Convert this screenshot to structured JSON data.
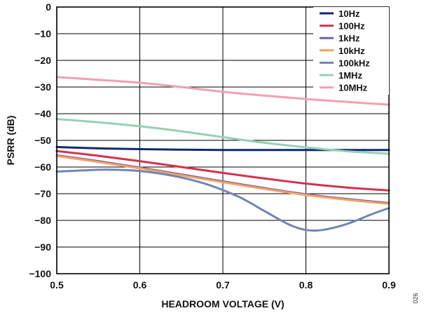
{
  "chart_data": {
    "type": "line",
    "title": "",
    "xlabel": "HEADROOM VOLTAGE (V)",
    "ylabel": "PSRR (dB)",
    "xlim": [
      0.5,
      0.9
    ],
    "ylim": [
      -100,
      0
    ],
    "xticks": [
      0.5,
      0.6,
      0.7,
      0.8,
      0.9
    ],
    "yticks": [
      0,
      -10,
      -20,
      -30,
      -40,
      -50,
      -60,
      -70,
      -80,
      -90,
      -100
    ],
    "xtick_labels": [
      "0.5",
      "0.6",
      "0.7",
      "0.8",
      "0.9"
    ],
    "ytick_labels": [
      "0",
      "−10",
      "−20",
      "−30",
      "−40",
      "−50",
      "−60",
      "−70",
      "−80",
      "−90",
      "−100"
    ],
    "grid": true,
    "legend_position": "top-right",
    "figure_id": "026",
    "series": [
      {
        "name": "10Hz",
        "color": "#0d2a6e",
        "x": [
          0.5,
          0.55,
          0.6,
          0.65,
          0.7,
          0.75,
          0.8,
          0.85,
          0.9
        ],
        "y": [
          -52.5,
          -53,
          -53.3,
          -53.5,
          -53.6,
          -53.6,
          -53.6,
          -53.6,
          -53.6
        ]
      },
      {
        "name": "100Hz",
        "color": "#d1344f",
        "x": [
          0.5,
          0.55,
          0.6,
          0.65,
          0.7,
          0.75,
          0.8,
          0.85,
          0.9
        ],
        "y": [
          -54,
          -55.8,
          -57.8,
          -60,
          -62.2,
          -64.3,
          -66.2,
          -67.7,
          -68.8
        ]
      },
      {
        "name": "1kHz",
        "color": "#7b5fa8",
        "x": [
          0.5,
          0.55,
          0.6,
          0.65,
          0.7,
          0.75,
          0.8,
          0.85,
          0.9
        ],
        "y": [
          -55.6,
          -57.8,
          -60.2,
          -62.8,
          -65.4,
          -67.9,
          -70.2,
          -72,
          -73.5
        ]
      },
      {
        "name": "10kHz",
        "color": "#f4a163",
        "x": [
          0.5,
          0.55,
          0.6,
          0.65,
          0.7,
          0.75,
          0.8,
          0.85,
          0.9
        ],
        "y": [
          -55.9,
          -58.1,
          -60.5,
          -63.1,
          -65.7,
          -68.2,
          -70.5,
          -72.3,
          -73.8
        ]
      },
      {
        "name": "100kHz",
        "color": "#6f86b6",
        "x": [
          0.5,
          0.53,
          0.56,
          0.6,
          0.64,
          0.68,
          0.72,
          0.75,
          0.78,
          0.8,
          0.82,
          0.85,
          0.88,
          0.9
        ],
        "y": [
          -61.7,
          -61.3,
          -61,
          -61.5,
          -63.3,
          -66.4,
          -71.3,
          -76.5,
          -81.6,
          -83.6,
          -83.6,
          -81.3,
          -77.6,
          -75.4
        ]
      },
      {
        "name": "1MHz",
        "color": "#96d0b6",
        "x": [
          0.5,
          0.55,
          0.6,
          0.65,
          0.7,
          0.75,
          0.8,
          0.85,
          0.9
        ],
        "y": [
          -42,
          -43.2,
          -44.7,
          -46.6,
          -48.8,
          -50.9,
          -52.6,
          -54.1,
          -55
        ]
      },
      {
        "name": "10MHz",
        "color": "#f2a0b0",
        "x": [
          0.5,
          0.55,
          0.6,
          0.65,
          0.7,
          0.75,
          0.8,
          0.85,
          0.9
        ],
        "y": [
          -26.3,
          -27.3,
          -28.4,
          -30,
          -31.8,
          -33.2,
          -34.5,
          -35.6,
          -36.6
        ]
      }
    ]
  }
}
